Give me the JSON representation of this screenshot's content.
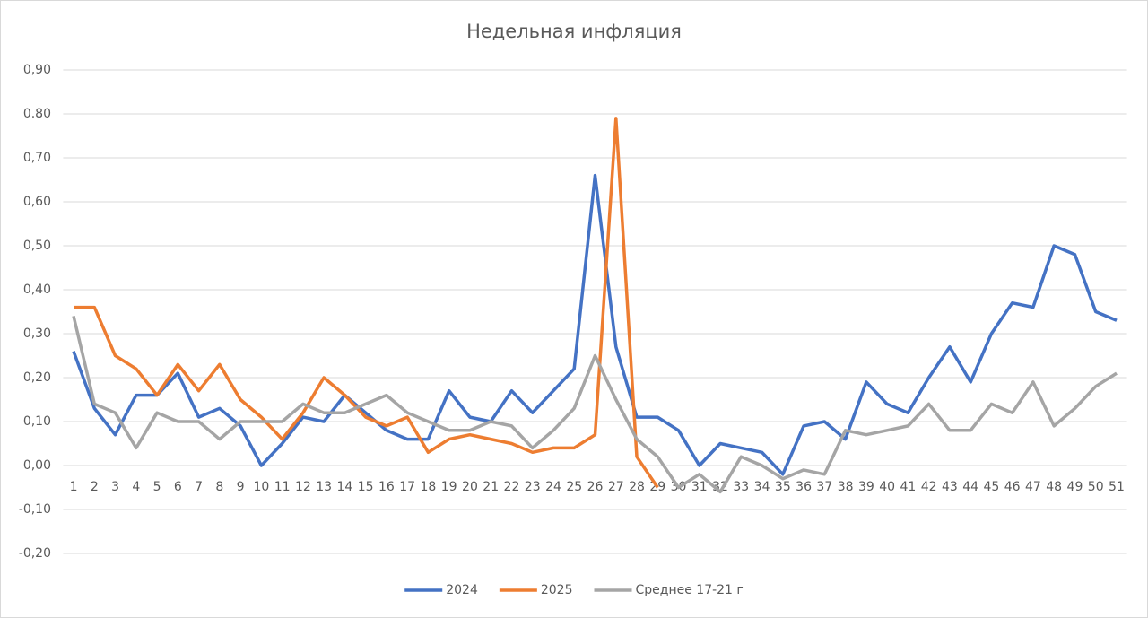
{
  "chart_data": {
    "type": "line",
    "title": "Недельная инфляция",
    "categories": [
      1,
      2,
      3,
      4,
      5,
      6,
      7,
      8,
      9,
      10,
      11,
      12,
      13,
      14,
      15,
      16,
      17,
      18,
      19,
      20,
      21,
      22,
      23,
      24,
      25,
      26,
      27,
      28,
      29,
      30,
      31,
      32,
      33,
      34,
      35,
      36,
      37,
      38,
      39,
      40,
      41,
      42,
      43,
      44,
      45,
      46,
      47,
      48,
      49,
      50,
      51
    ],
    "series": [
      {
        "name": "2024",
        "color": "#4472c4",
        "values": [
          0.26,
          0.13,
          0.07,
          0.16,
          0.16,
          0.21,
          0.11,
          0.13,
          0.09,
          0.0,
          0.05,
          0.11,
          0.1,
          0.16,
          0.12,
          0.08,
          0.06,
          0.06,
          0.17,
          0.11,
          0.1,
          0.17,
          0.12,
          0.17,
          0.22,
          0.66,
          0.27,
          0.11,
          0.11,
          0.08,
          0.0,
          0.05,
          0.04,
          0.03,
          -0.02,
          0.09,
          0.1,
          0.06,
          0.19,
          0.14,
          0.12,
          0.2,
          0.27,
          0.19,
          0.3,
          0.37,
          0.36,
          0.5,
          0.48,
          0.35,
          0.33
        ]
      },
      {
        "name": "2025",
        "color": "#ed7d31",
        "values": [
          0.36,
          0.36,
          0.25,
          0.22,
          0.16,
          0.23,
          0.17,
          0.23,
          0.15,
          0.11,
          0.06,
          0.12,
          0.2,
          0.16,
          0.11,
          0.09,
          0.11,
          0.03,
          0.06,
          0.07,
          0.06,
          0.05,
          0.03,
          0.04,
          0.04,
          0.07,
          0.79,
          0.02,
          -0.05,
          null,
          null,
          null,
          null,
          null,
          null,
          null,
          null,
          null,
          null,
          null,
          null,
          null,
          null,
          null,
          null,
          null,
          null,
          null,
          null,
          null,
          null
        ]
      },
      {
        "name": "Среднее 17-21 г",
        "color": "#a5a5a5",
        "values": [
          0.34,
          0.14,
          0.12,
          0.04,
          0.12,
          0.1,
          0.1,
          0.06,
          0.1,
          0.1,
          0.1,
          0.14,
          0.12,
          0.12,
          0.14,
          0.16,
          0.12,
          0.1,
          0.08,
          0.08,
          0.1,
          0.09,
          0.04,
          0.08,
          0.13,
          0.25,
          0.15,
          0.06,
          0.02,
          -0.05,
          -0.02,
          -0.06,
          0.02,
          0.0,
          -0.03,
          -0.01,
          -0.02,
          0.08,
          0.07,
          0.08,
          0.09,
          0.14,
          0.08,
          0.08,
          0.14,
          0.12,
          0.19,
          0.09,
          0.13,
          0.18,
          0.21
        ]
      }
    ],
    "ylim": [
      -0.2,
      0.9
    ],
    "yticks": [
      {
        "value": -0.2,
        "label": "-0,20"
      },
      {
        "value": -0.1,
        "label": "-0,10"
      },
      {
        "value": 0,
        "label": "0,00"
      },
      {
        "value": 0.1,
        "label": "0,10"
      },
      {
        "value": 0.2,
        "label": "0,20"
      },
      {
        "value": 0.3,
        "label": "0,30"
      },
      {
        "value": 0.4,
        "label": "0,40"
      },
      {
        "value": 0.5,
        "label": "0,50"
      },
      {
        "value": 0.6,
        "label": "0,60"
      },
      {
        "value": 0.7,
        "label": "0,70"
      },
      {
        "value": 0.8,
        "label": "0.80"
      },
      {
        "value": 0.9,
        "label": "0,90"
      }
    ],
    "grid": true,
    "legend": "bottom"
  }
}
